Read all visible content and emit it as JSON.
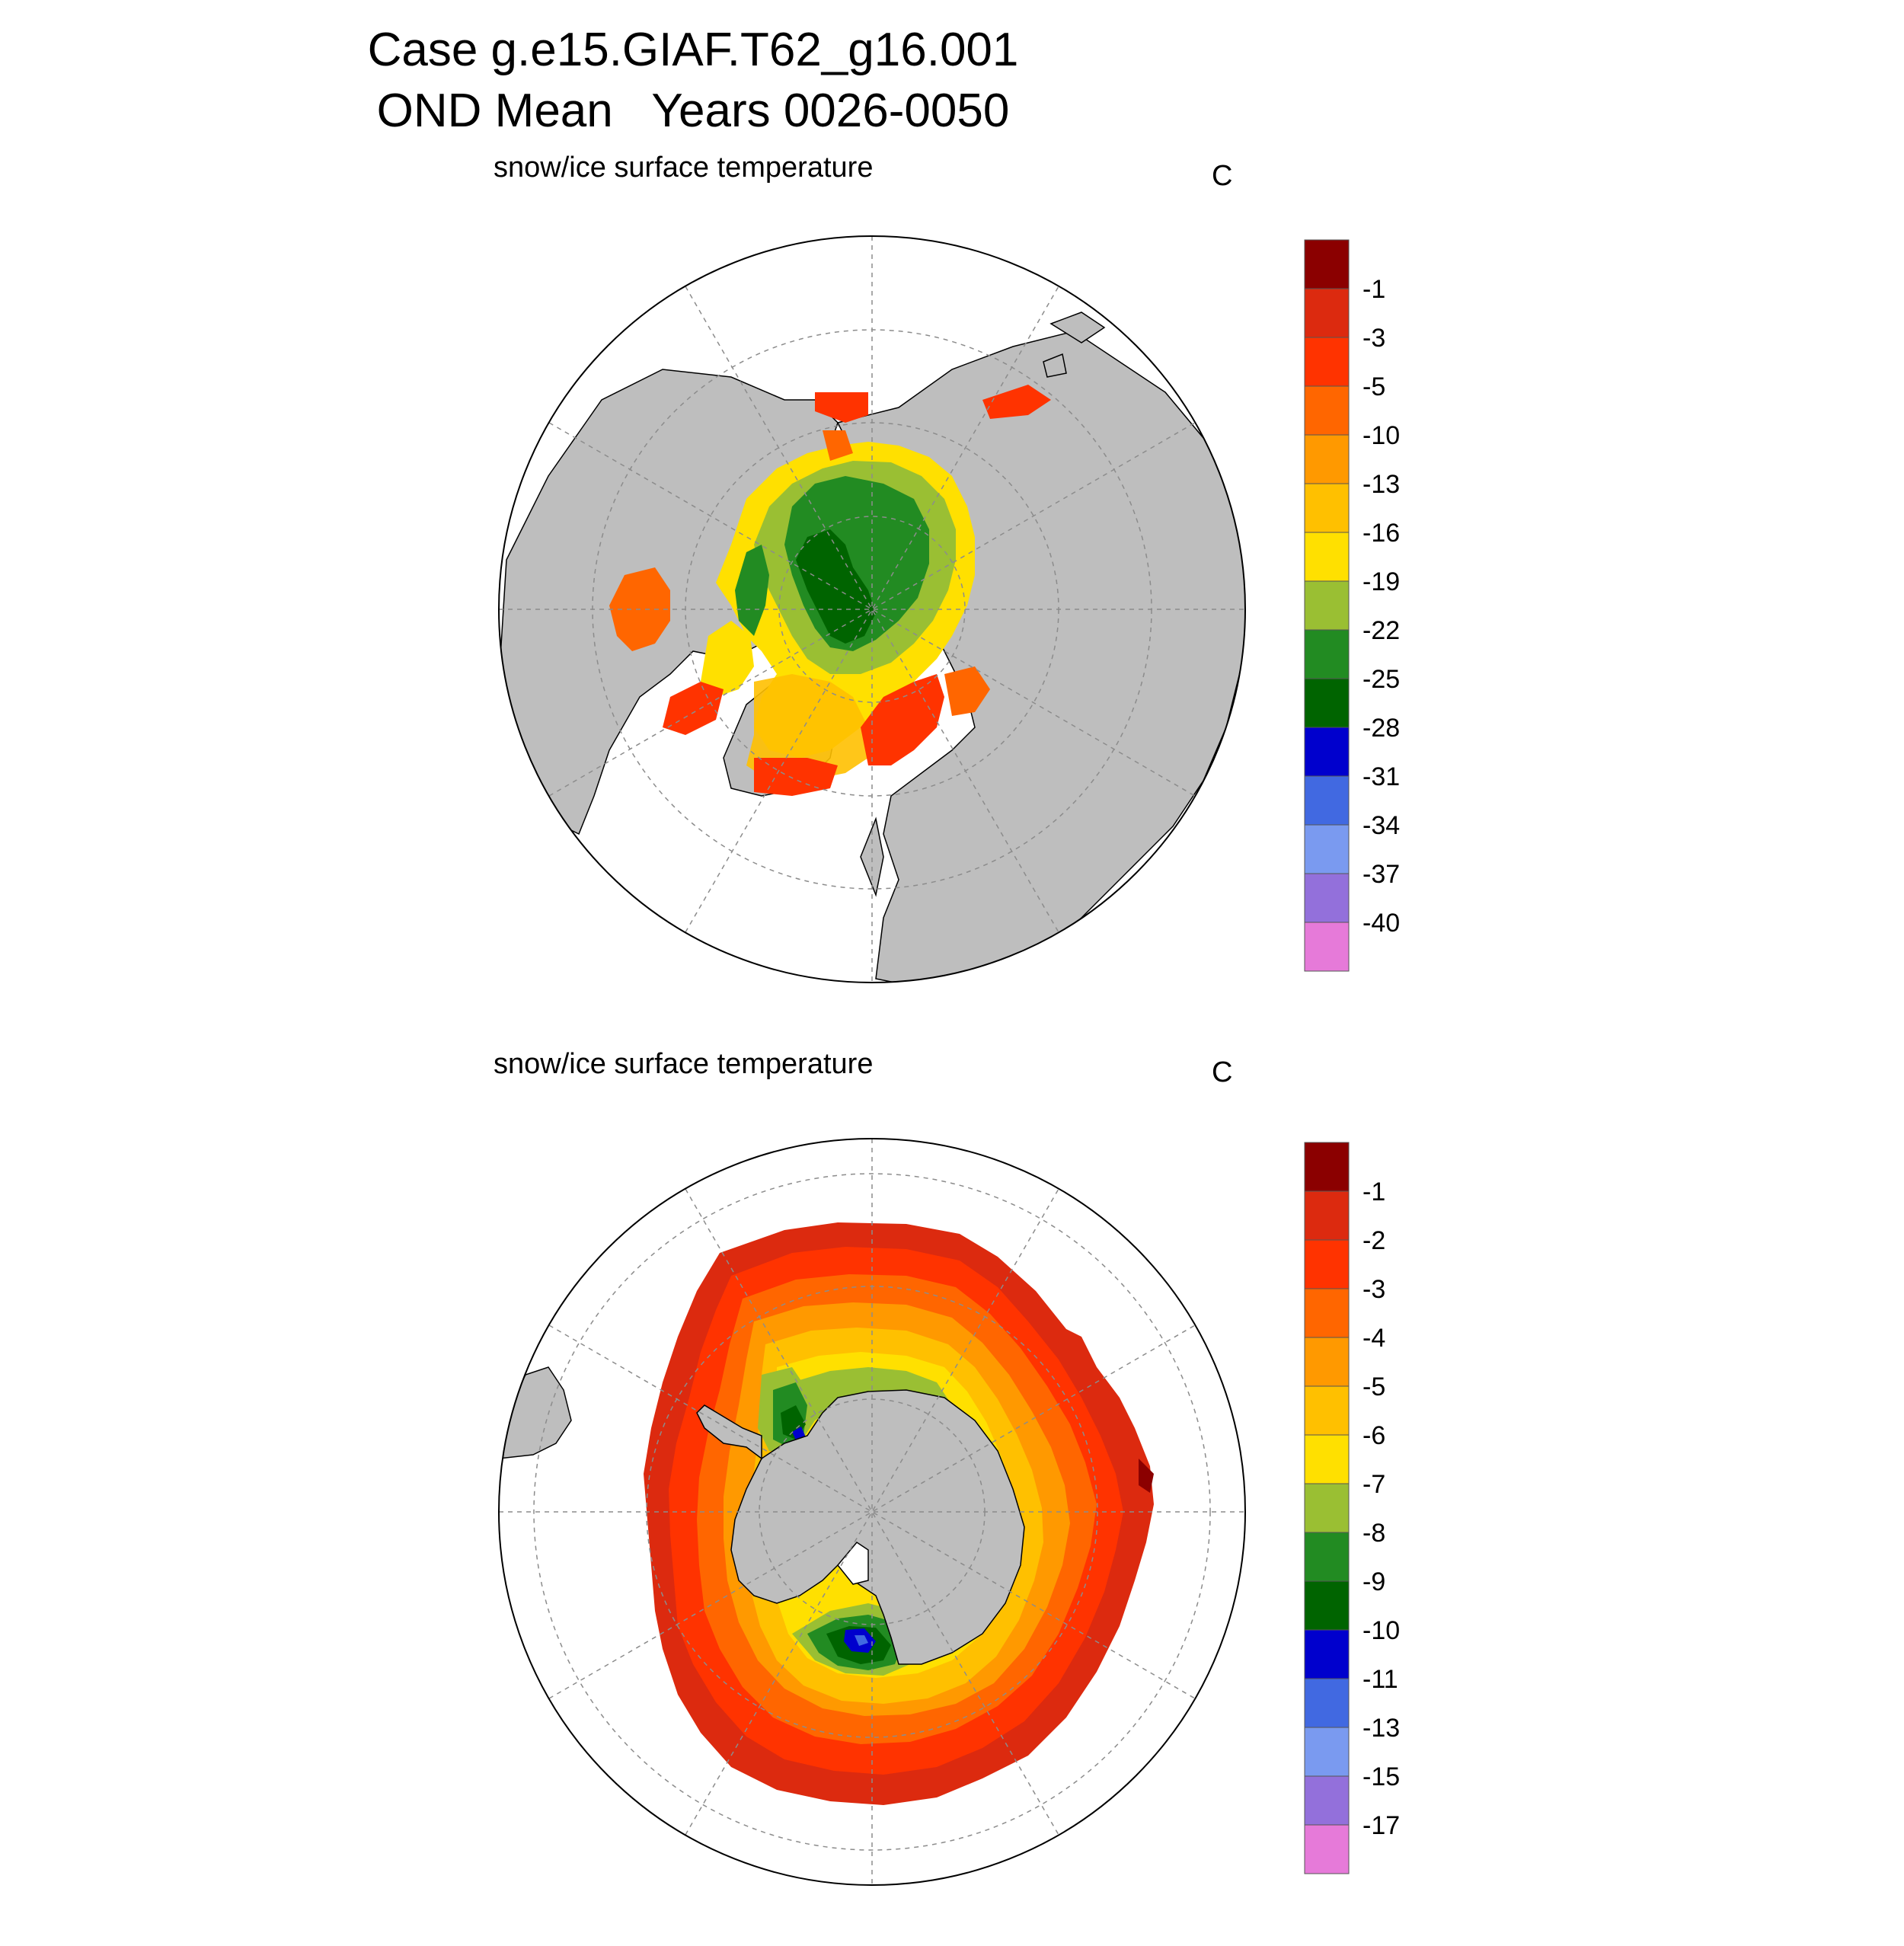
{
  "title": {
    "line1": "Case g.e15.GIAF.T62_g16.001",
    "line2": "OND Mean   Years 0026-0050"
  },
  "colors": {
    "land": "#bebebe",
    "ocean": "#ffffff",
    "grid": "#8c8c8c",
    "outline": "#000000"
  },
  "panels": [
    {
      "id": "north",
      "hemisphere": "north",
      "variable_label": "snow/ice surface temperature",
      "units": "C",
      "colorbar": {
        "colors": [
          "#8b0000",
          "#dc2a0f",
          "#ff3300",
          "#ff6600",
          "#ff9900",
          "#ffc000",
          "#ffe000",
          "#9abf33",
          "#228b22",
          "#006400",
          "#0000cd",
          "#4169e1",
          "#7a9af0",
          "#9370db",
          "#e67ad9"
        ],
        "labels": [
          "-1",
          "-3",
          "-5",
          "-10",
          "-13",
          "-16",
          "-19",
          "-22",
          "-25",
          "-28",
          "-31",
          "-34",
          "-37",
          "-40"
        ]
      }
    },
    {
      "id": "south",
      "hemisphere": "south",
      "variable_label": "snow/ice surface temperature",
      "units": "C",
      "colorbar": {
        "colors": [
          "#8b0000",
          "#dc2a0f",
          "#ff3300",
          "#ff6600",
          "#ff9900",
          "#ffc000",
          "#ffe000",
          "#9abf33",
          "#228b22",
          "#006400",
          "#0000cd",
          "#4169e1",
          "#7a9af0",
          "#9370db",
          "#e67ad9"
        ],
        "labels": [
          "-1",
          "-2",
          "-3",
          "-4",
          "-5",
          "-6",
          "-7",
          "-8",
          "-9",
          "-10",
          "-11",
          "-13",
          "-15",
          "-17"
        ]
      }
    }
  ]
}
